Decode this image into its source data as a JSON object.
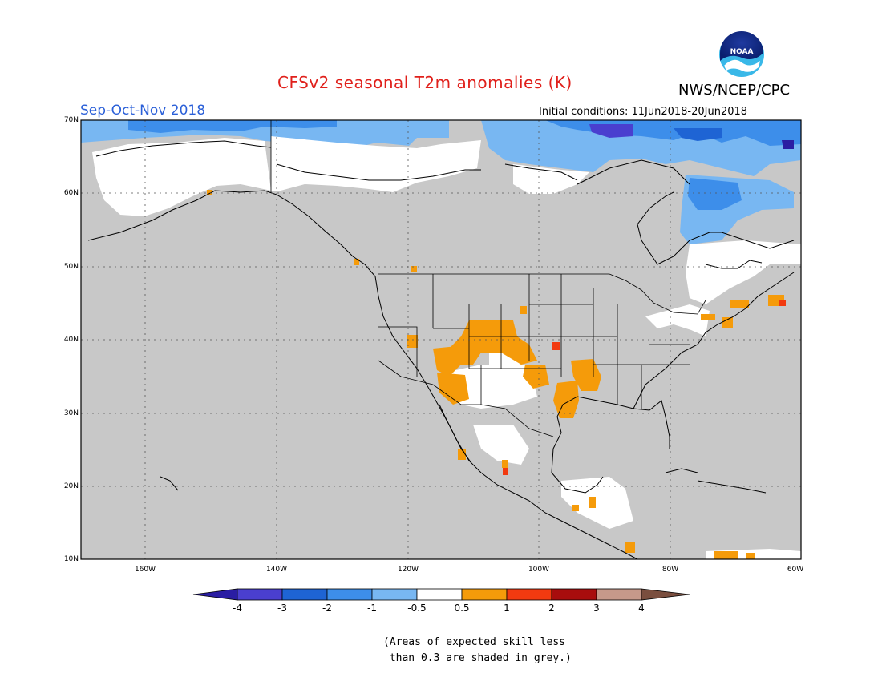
{
  "title": "CFSv2 seasonal T2m anomalies (K)",
  "agency": "NWS/NCEP/CPC",
  "logo_text": "NOAA",
  "season": "Sep-Oct-Nov 2018",
  "initial_conditions": "Initial conditions: 11Jun2018-20Jun2018",
  "lat_labels": [
    "70N",
    "60N",
    "50N",
    "40N",
    "30N",
    "20N",
    "10N"
  ],
  "lon_labels": [
    "160W",
    "140W",
    "120W",
    "100W",
    "80W",
    "60W"
  ],
  "colorbar": {
    "tick_labels": [
      "-4",
      "-3",
      "-2",
      "-1",
      "-0.5",
      "0.5",
      "1",
      "2",
      "3",
      "4"
    ],
    "colors": [
      "#2a1da3",
      "#4a3fcf",
      "#1e64d4",
      "#3d8eea",
      "#78b7f2",
      "#ffffff",
      "#f59b0a",
      "#f23a10",
      "#a80d0d",
      "#c6998a",
      "#7a4e3e"
    ]
  },
  "note_line1": "(Areas of expected skill less",
  "note_line2": " than 0.3 are shaded in grey.)",
  "colors": {
    "title": "#e0201b",
    "season": "#2a5fd8",
    "no_skill": "#c8c8c8"
  }
}
